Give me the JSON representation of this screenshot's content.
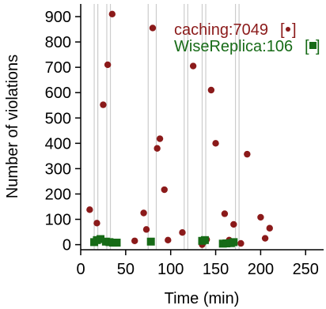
{
  "chart_data": {
    "type": "scatter",
    "xlabel": "Time (min)",
    "ylabel": "Number of violations",
    "xlim": [
      0,
      270
    ],
    "ylim": [
      -20,
      950
    ],
    "xticks": [
      0,
      50,
      100,
      150,
      200,
      250
    ],
    "yticks": [
      0,
      100,
      200,
      300,
      400,
      500,
      600,
      700,
      800,
      900
    ],
    "xtick_labels": [
      "0",
      "50",
      "100",
      "150",
      "200",
      "250"
    ],
    "ytick_labels": [
      "0",
      "100",
      "200",
      "300",
      "400",
      "500",
      "600",
      "700",
      "800",
      "900"
    ],
    "grid": false,
    "legend_position": "top-right",
    "vertical_lines_x": [
      15,
      19,
      29,
      33,
      75,
      84,
      115,
      119,
      135,
      139,
      172,
      176
    ],
    "vertical_line_color": "#cccccc",
    "series": [
      {
        "name": "caching:7049",
        "marker": "circle",
        "color": "#8b1a1a",
        "x": [
          10,
          18,
          25,
          30,
          35,
          60,
          70,
          73,
          80,
          85,
          88,
          93,
          97,
          113,
          125,
          135,
          140,
          145,
          150,
          160,
          165,
          170,
          178,
          185,
          200,
          205,
          210
        ],
        "y": [
          138,
          85,
          552,
          710,
          910,
          15,
          125,
          60,
          855,
          380,
          418,
          217,
          18,
          48,
          705,
          0,
          20,
          610,
          400,
          122,
          18,
          80,
          5,
          357,
          108,
          25,
          65
        ]
      },
      {
        "name": "WiseReplica:106",
        "marker": "square",
        "color": "#176b17",
        "x": [
          15,
          18,
          22,
          28,
          32,
          36,
          40,
          78,
          135,
          138,
          158,
          162,
          167,
          170
        ],
        "y": [
          10,
          18,
          22,
          12,
          10,
          8,
          8,
          12,
          15,
          18,
          4,
          5,
          6,
          10
        ]
      }
    ]
  }
}
